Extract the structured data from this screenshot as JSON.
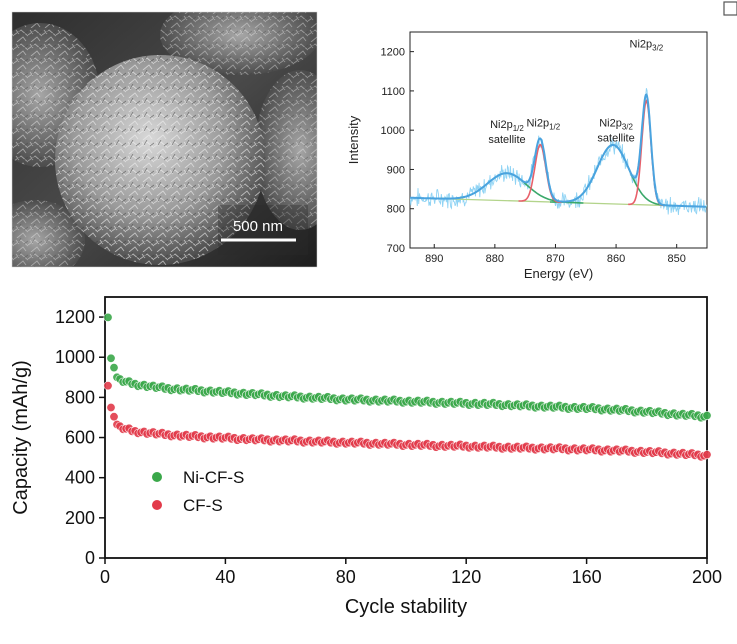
{
  "sem": {
    "scale_label": "500 nm"
  },
  "chart_data": [
    {
      "type": "line",
      "xlabel": "Energy (eV)",
      "ylabel": "Intensity",
      "xlim": [
        894,
        845
      ],
      "ylim": [
        700,
        1250
      ],
      "x_ticks": [
        890,
        880,
        870,
        860,
        850
      ],
      "y_ticks": [
        700,
        800,
        900,
        1000,
        1100,
        1200
      ],
      "annotations": [
        {
          "text": "Ni2p",
          "sub": "1/2",
          "extra": "satellite",
          "x": 878,
          "y": 1005
        },
        {
          "text": "Ni2p",
          "sub": "1/2",
          "extra": "",
          "x": 872,
          "y": 1010
        },
        {
          "text": "Ni2p",
          "sub": "3/2",
          "extra": "satellite",
          "x": 860,
          "y": 1010
        },
        {
          "text": "Ni2p",
          "sub": "3/2",
          "extra": "",
          "x": 855,
          "y": 1210
        }
      ],
      "series": [
        {
          "role": "raw",
          "color": "#8fd3f4",
          "values": []
        },
        {
          "role": "envelope",
          "color": "#4aa3df",
          "peaks": [
            {
              "center": 878,
              "height": 70,
              "width": 3.2
            },
            {
              "center": 872.5,
              "height": 145,
              "width": 0.9
            },
            {
              "center": 860.5,
              "height": 150,
              "width": 2.6
            },
            {
              "center": 855,
              "height": 265,
              "width": 0.75
            }
          ],
          "baseline": [
            [
              894,
              828
            ],
            [
              845,
              805
            ]
          ]
        },
        {
          "role": "satellite-fit",
          "color": "#3aa86a",
          "peaks": [
            878,
            860.5
          ]
        },
        {
          "role": "main-fit",
          "color": "#e8606a",
          "peaks": [
            872.5,
            855
          ]
        },
        {
          "role": "background",
          "color": "#b3d48b",
          "values": [
            [
              894,
              828
            ],
            [
              845,
              805
            ]
          ]
        }
      ]
    },
    {
      "type": "scatter",
      "xlabel": "Cycle stability",
      "ylabel": "Capacity (mAh/g)",
      "xlim": [
        0,
        200
      ],
      "ylim": [
        0,
        1300
      ],
      "x_ticks": [
        0,
        40,
        80,
        120,
        160,
        200
      ],
      "y_ticks": [
        0,
        200,
        400,
        600,
        800,
        1000,
        1200
      ],
      "legend_position": "center-left",
      "series": [
        {
          "name": "Ni-CF-S",
          "color": "#3aa84a",
          "values": [
            [
              1,
              1200
            ],
            [
              2,
              990
            ],
            [
              3,
              955
            ],
            [
              4,
              900
            ],
            [
              5,
              885
            ],
            [
              10,
              865
            ],
            [
              20,
              845
            ],
            [
              30,
              835
            ],
            [
              40,
              825
            ],
            [
              50,
              815
            ],
            [
              60,
              805
            ],
            [
              70,
              798
            ],
            [
              80,
              790
            ],
            [
              90,
              785
            ],
            [
              100,
              780
            ],
            [
              110,
              775
            ],
            [
              120,
              770
            ],
            [
              130,
              765
            ],
            [
              140,
              758
            ],
            [
              150,
              752
            ],
            [
              160,
              746
            ],
            [
              170,
              738
            ],
            [
              180,
              728
            ],
            [
              190,
              715
            ],
            [
              200,
              705
            ]
          ]
        },
        {
          "name": "CF-S",
          "color": "#e23a4a",
          "values": [
            [
              1,
              860
            ],
            [
              2,
              745
            ],
            [
              3,
              710
            ],
            [
              4,
              665
            ],
            [
              5,
              650
            ],
            [
              10,
              630
            ],
            [
              20,
              615
            ],
            [
              30,
              605
            ],
            [
              40,
              598
            ],
            [
              50,
              590
            ],
            [
              60,
              585
            ],
            [
              70,
              580
            ],
            [
              80,
              575
            ],
            [
              90,
              570
            ],
            [
              100,
              565
            ],
            [
              110,
              560
            ],
            [
              120,
              557
            ],
            [
              130,
              552
            ],
            [
              140,
              548
            ],
            [
              150,
              545
            ],
            [
              160,
              540
            ],
            [
              170,
              535
            ],
            [
              180,
              528
            ],
            [
              190,
              520
            ],
            [
              200,
              510
            ]
          ]
        }
      ]
    }
  ]
}
